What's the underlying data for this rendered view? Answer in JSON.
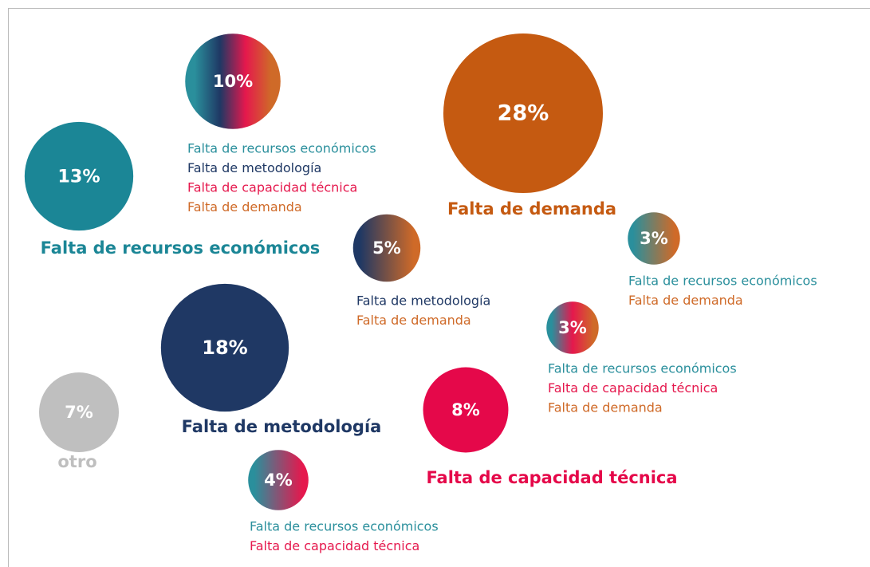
{
  "bubbles": [
    {
      "value": 10,
      "value_label": "10%",
      "causes": [
        {
          "text": "Falta de recursos económicos",
          "color": "#2a8f9c"
        },
        {
          "text": "Falta de metodología",
          "color": "#1f3864"
        },
        {
          "text": "Falta de capacidad técnica",
          "color": "#e5184d"
        },
        {
          "text": "Falta de demanda",
          "color": "#cf6a28"
        }
      ]
    },
    {
      "value": 28,
      "value_label": "28%",
      "name": "Falta de demanda",
      "color": "#c55a11"
    },
    {
      "value": 13,
      "value_label": "13%",
      "name": "Falta de recursos económicos",
      "color": "#1b8696"
    },
    {
      "value": 5,
      "value_label": "5%",
      "causes": [
        {
          "text": "Falta de metodología",
          "color": "#1f3864"
        },
        {
          "text": "Falta de demanda",
          "color": "#cf6a28"
        }
      ]
    },
    {
      "value": 3,
      "value_label": "3%",
      "causes": [
        {
          "text": "Falta de recursos económicos",
          "color": "#2a8f9c"
        },
        {
          "text": "Falta de demanda",
          "color": "#cf6a28"
        }
      ]
    },
    {
      "value": 18,
      "value_label": "18%",
      "name": "Falta de metodología",
      "color": "#1f3864"
    },
    {
      "value": 3,
      "value_label": "3%",
      "causes": [
        {
          "text": "Falta de recursos económicos",
          "color": "#2a8f9c"
        },
        {
          "text": "Falta de capacidad técnica",
          "color": "#e5184d"
        },
        {
          "text": "Falta de demanda",
          "color": "#cf6a28"
        }
      ]
    },
    {
      "value": 7,
      "value_label": "7%",
      "name": "otro",
      "color": "#bfbfbf"
    },
    {
      "value": 8,
      "value_label": "8%",
      "name": "Falta de capacidad técnica",
      "color": "#e5084a"
    },
    {
      "value": 4,
      "value_label": "4%",
      "causes": [
        {
          "text": "Falta de recursos económicos",
          "color": "#2a8f9c"
        },
        {
          "text": "Falta de capacidad técnica",
          "color": "#e5184d"
        }
      ]
    }
  ]
}
